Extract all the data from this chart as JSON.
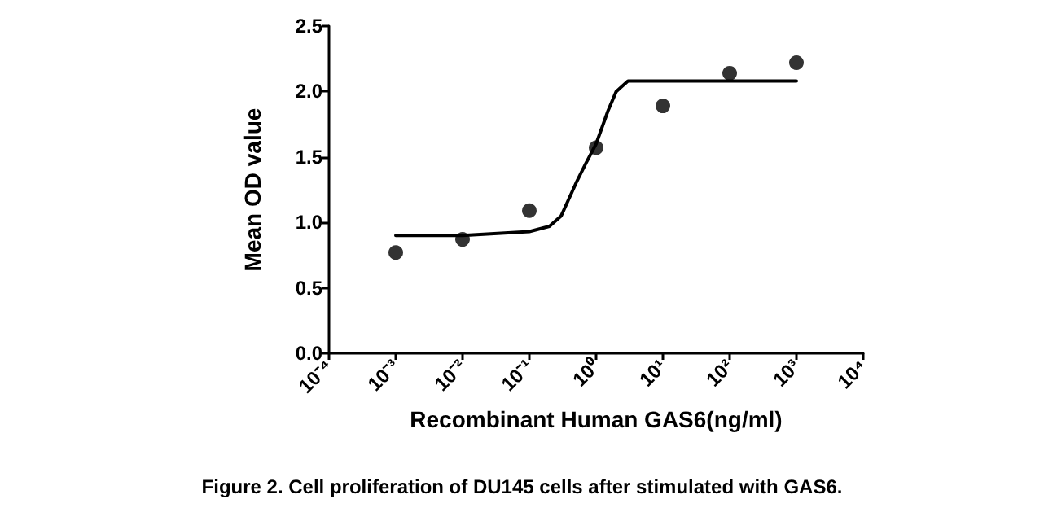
{
  "chart_data": {
    "type": "scatter",
    "xlabel": "Recombinant Human GAS6(ng/ml)",
    "ylabel": "Mean OD value",
    "annotations": [
      "Figure 2. Cell proliferation of DU145 cells after stimulated with GAS6."
    ],
    "log": "x",
    "grid": false,
    "marker": "circle",
    "xlim": [
      0.0001,
      10000
    ],
    "xticks": [
      {
        "value": 0.0001,
        "label": "10⁻⁴"
      },
      {
        "value": 0.001,
        "label": "10⁻³"
      },
      {
        "value": 0.01,
        "label": "10⁻²"
      },
      {
        "value": 0.1,
        "label": "10⁻¹"
      },
      {
        "value": 1,
        "label": "10⁰"
      },
      {
        "value": 10,
        "label": "10¹"
      },
      {
        "value": 100,
        "label": "10²"
      },
      {
        "value": 1000,
        "label": "10³"
      },
      {
        "value": 10000,
        "label": "10⁴"
      }
    ],
    "ylim": [
      0,
      2.5
    ],
    "yticks": [
      {
        "value": 0,
        "label": "0.0"
      },
      {
        "value": 0.5,
        "label": "0.5"
      },
      {
        "value": 1,
        "label": "1.0"
      },
      {
        "value": 1.5,
        "label": "1.5"
      },
      {
        "value": 2,
        "label": "2.0"
      },
      {
        "value": 2.5,
        "label": "2.5"
      }
    ],
    "series": [
      {
        "color": "#000000",
        "x": [
          0.001,
          0.01,
          0.1,
          1,
          10,
          100,
          1000
        ],
        "values": [
          0.77,
          0.87,
          1.09,
          1.57,
          1.89,
          2.14,
          2.22
        ]
      },
      {
        "type": "line",
        "color": "#000000",
        "marker": "none",
        "line_style": "solid",
        "x": [
          0.001,
          0.01,
          0.1,
          0.2,
          0.3,
          0.5,
          0.7,
          1,
          1.5,
          2,
          3,
          10,
          100,
          1000
        ],
        "values": [
          0.9,
          0.9,
          0.93,
          0.97,
          1.05,
          1.3,
          1.45,
          1.6,
          1.85,
          2.0,
          2.08,
          2.08,
          2.08,
          2.08
        ]
      }
    ]
  }
}
